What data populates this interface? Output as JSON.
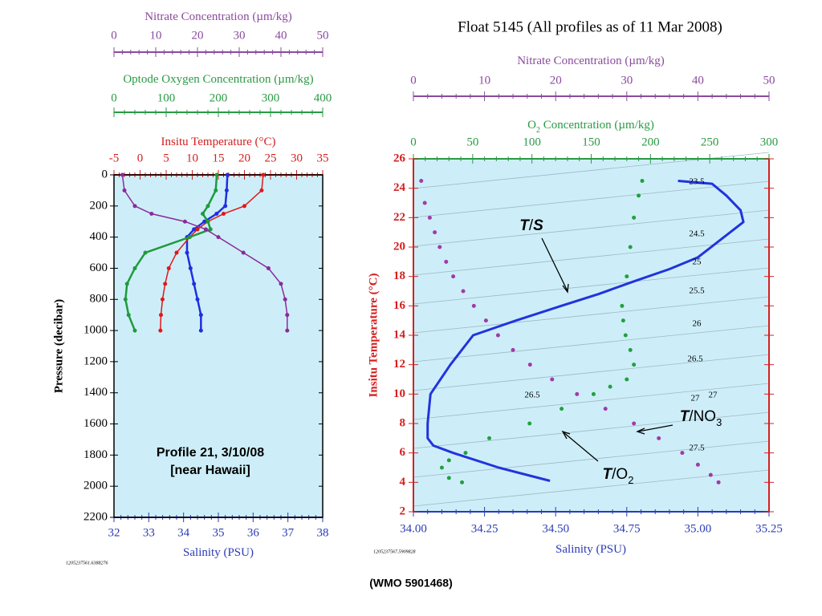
{
  "chart_data": [
    {
      "type": "profile",
      "y_label": "Pressure (decibar)",
      "ylim": [
        0,
        2200
      ],
      "yticks": [
        0,
        200,
        400,
        600,
        800,
        1000,
        1200,
        1400,
        1600,
        1800,
        2000,
        2200
      ],
      "y_inverted": true,
      "x_axes": [
        {
          "id": "x",
          "label": "Salinity (PSU)",
          "lim": [
            32,
            38
          ],
          "ticks": [
            32,
            33,
            34,
            35,
            36,
            37,
            38
          ],
          "color": "#2a3cb4"
        },
        {
          "id": "x2",
          "label": "Insitu Temperature (°C)",
          "lim": [
            -5,
            35
          ],
          "ticks": [
            -5,
            0,
            5,
            10,
            15,
            20,
            25,
            30,
            35
          ],
          "color": "#d42020"
        },
        {
          "id": "x3",
          "label": "Optode Oxygen Concentration (µm/kg)",
          "lim": [
            0,
            400
          ],
          "ticks": [
            0,
            100,
            200,
            300,
            400
          ],
          "color": "#2a9a44"
        },
        {
          "id": "x4",
          "label": "Nitrate Concentration (µm/kg)",
          "lim": [
            0,
            50
          ],
          "ticks": [
            0,
            10,
            20,
            30,
            40,
            50
          ],
          "color": "#8a4a9c"
        }
      ],
      "pressure": [
        0,
        100,
        200,
        250,
        300,
        350,
        400,
        500,
        600,
        700,
        800,
        900,
        1000
      ],
      "series": [
        {
          "axis": "x",
          "color": "#1f2fe0",
          "values": [
            35.26,
            35.24,
            35.2,
            34.95,
            34.6,
            34.3,
            34.1,
            34.1,
            34.2,
            34.3,
            34.4,
            34.5,
            34.5
          ]
        },
        {
          "axis": "x2",
          "color": "#e01818",
          "values": [
            23.6,
            23.3,
            20,
            16,
            13,
            11,
            9.5,
            7,
            5.5,
            4.8,
            4.3,
            4,
            3.9
          ]
        },
        {
          "axis": "x3",
          "color": "#1f9a3c",
          "values": [
            197,
            195,
            180,
            170,
            180,
            185,
            145,
            60,
            40,
            25,
            22,
            28,
            40
          ]
        },
        {
          "axis": "x4",
          "color": "#8a2a9a",
          "values": [
            2,
            2.5,
            5,
            9,
            17,
            22,
            25,
            31,
            37,
            40,
            41,
            41.5,
            41.5
          ]
        }
      ],
      "annotations": [
        "Profile 21, 3/10/08",
        "[near Hawaii]"
      ],
      "stamp": "1205237561.6388276"
    },
    {
      "type": "scatter",
      "title": "Float 5145  (All profiles as of 11 Mar 2008)",
      "y_label": "Insitu Temperature (°C)",
      "ylim": [
        2,
        26
      ],
      "yticks": [
        2,
        4,
        6,
        8,
        10,
        12,
        14,
        16,
        18,
        20,
        22,
        24,
        26
      ],
      "x_axes": [
        {
          "id": "x",
          "label": "Salinity (PSU)",
          "lim": [
            34,
            35.25
          ],
          "ticks": [
            {
              "value": 34,
              "label": "34.00"
            },
            {
              "value": 34.25,
              "label": "34.25"
            },
            {
              "value": 34.5,
              "label": "34.50"
            },
            {
              "value": 34.75,
              "label": "34.75"
            },
            {
              "value": 35,
              "label": "35.00"
            },
            {
              "value": 35.25,
              "label": "35.25"
            }
          ],
          "color": "#2a3cb4"
        },
        {
          "id": "x2",
          "label": "O",
          "label_sub": "2",
          "label_rest": " Concentration (µm/kg)",
          "lim": [
            0,
            300
          ],
          "ticks": [
            0,
            50,
            100,
            150,
            200,
            250,
            300
          ],
          "color": "#2a9a44"
        },
        {
          "id": "x3",
          "label": "Nitrate Concentration (µm/kg)",
          "lim": [
            0,
            50
          ],
          "ticks": [
            0,
            10,
            20,
            30,
            40,
            50
          ],
          "color": "#8a4a9c"
        }
      ],
      "series": [
        {
          "axis": "x",
          "color": "#2233dd",
          "mode": "line",
          "x": [
            34.93,
            35.05,
            35.1,
            35.15,
            35.16,
            35.08,
            35.0,
            34.9,
            34.78,
            34.65,
            34.52,
            34.36,
            34.21,
            34.13,
            34.06,
            34.05,
            34.05,
            34.07,
            34.14,
            34.3,
            34.48
          ],
          "y": [
            24.5,
            24.3,
            23.5,
            22.5,
            21.7,
            20.5,
            19.3,
            18.5,
            17.7,
            16.8,
            16,
            15,
            14,
            12,
            10,
            8,
            7,
            6.5,
            6,
            5,
            4.1
          ]
        },
        {
          "axis": "x2",
          "color": "#22a040",
          "mode": "points",
          "x": [
            193,
            190,
            186,
            183,
            180,
            176,
            177,
            179,
            183,
            186,
            180,
            166,
            152,
            125,
            98,
            64,
            44,
            30,
            24,
            30,
            41
          ],
          "y": [
            24.5,
            23.5,
            22,
            20,
            18,
            16,
            15,
            14,
            13,
            12,
            11,
            10.5,
            10,
            9,
            8,
            7,
            6,
            5.5,
            5,
            4.3,
            4
          ]
        },
        {
          "axis": "x3",
          "color": "#a03aa8",
          "mode": "points",
          "x": [
            1.1,
            1.6,
            2.3,
            3,
            3.7,
            4.6,
            5.6,
            7,
            8.5,
            10.2,
            11.9,
            14,
            16.4,
            19.5,
            23,
            27,
            31,
            34.5,
            37.8,
            40,
            41.8,
            42.9
          ],
          "y": [
            24.5,
            23,
            22,
            21,
            20,
            19,
            18,
            17,
            16,
            15,
            14,
            13,
            12,
            11,
            10,
            9,
            8,
            7,
            6,
            5.2,
            4.5,
            4
          ]
        }
      ],
      "density_labels": [
        "23.5",
        "24.5",
        "25",
        "25.5",
        "26",
        "26.5",
        "26.5",
        "27",
        "27",
        "27.5"
      ],
      "annotations": [
        {
          "text": [
            "T",
            "/",
            "S"
          ],
          "style": [
            "i",
            "n",
            "i"
          ]
        },
        {
          "text": [
            "T",
            "/NO",
            "3"
          ],
          "style": [
            "i",
            "n",
            "s"
          ]
        },
        {
          "text": [
            "T",
            "/O",
            "2"
          ],
          "style": [
            "i",
            "n",
            "s"
          ]
        }
      ],
      "stamp": "1205237567.5909828"
    }
  ],
  "footer": "(WMO 5901468)"
}
